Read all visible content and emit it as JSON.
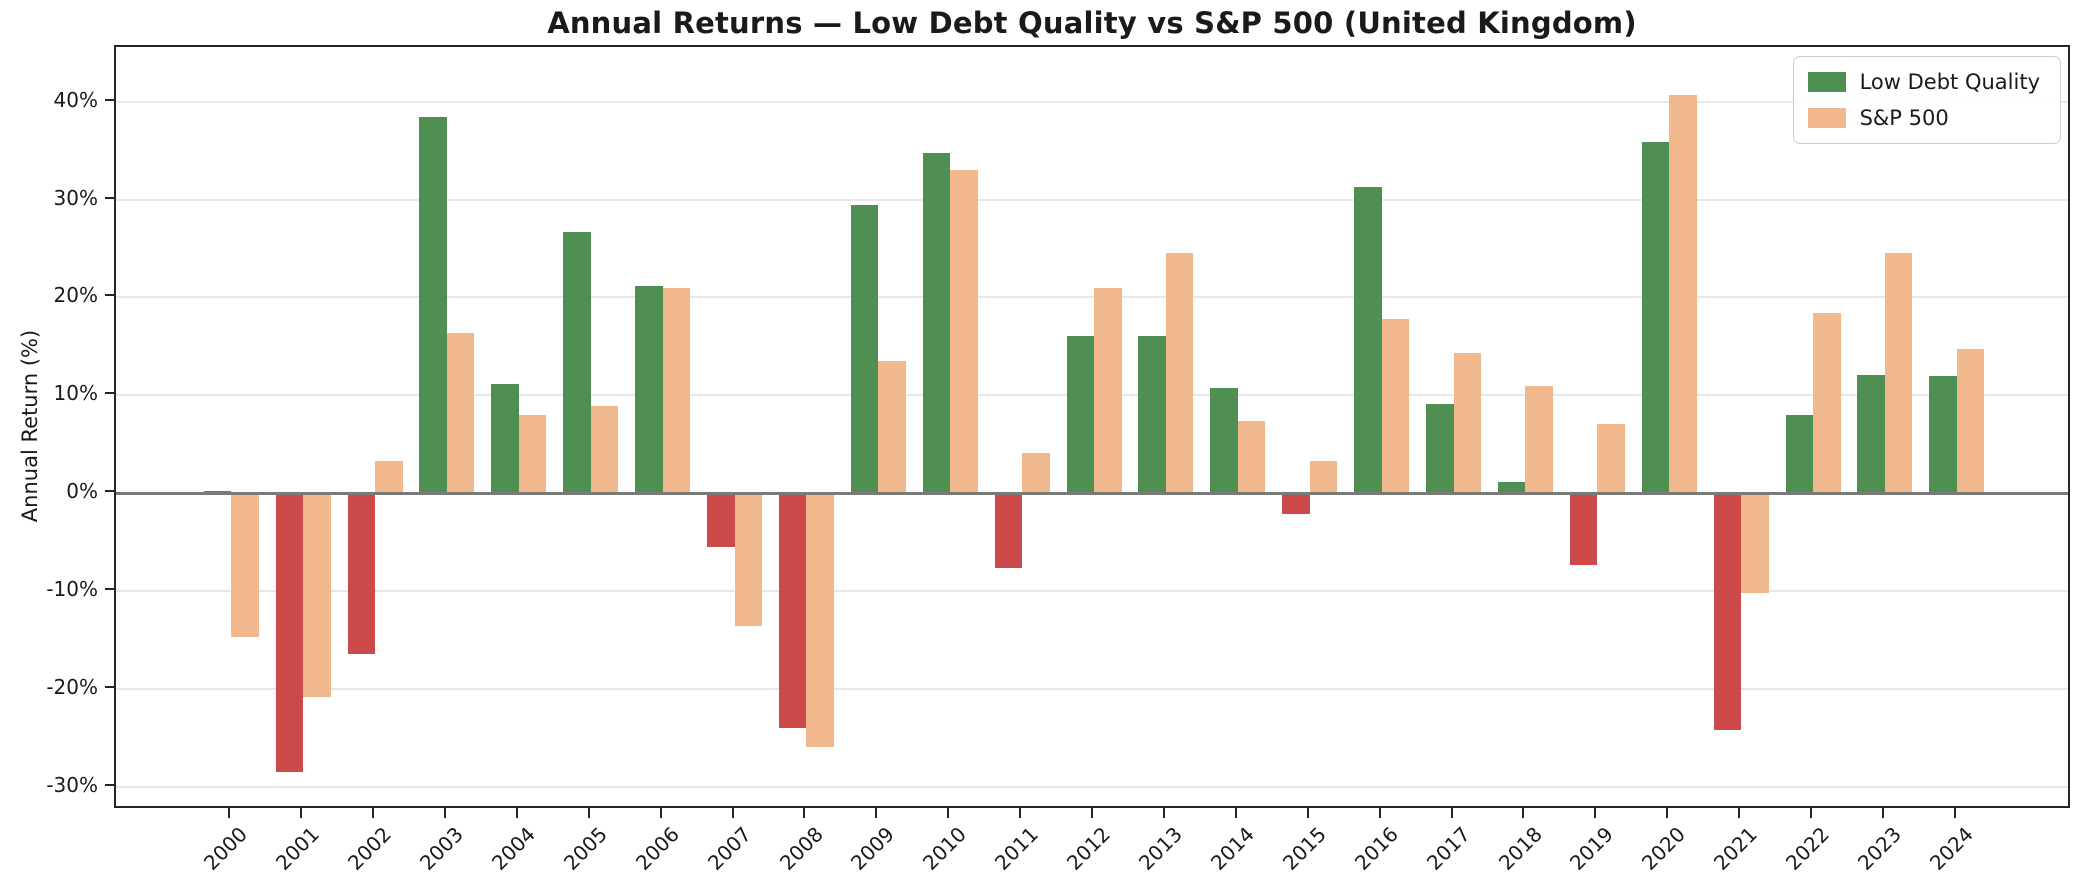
{
  "title": "Annual Returns — Low Debt Quality vs S&P 500 (United Kingdom)",
  "chart_data": {
    "type": "bar",
    "title": "Annual Returns — Low Debt Quality vs S&P 500 (United Kingdom)",
    "xlabel": "",
    "ylabel": "Annual Return (%)",
    "categories": [
      "2000",
      "2001",
      "2002",
      "2003",
      "2004",
      "2005",
      "2006",
      "2007",
      "2008",
      "2009",
      "2010",
      "2011",
      "2012",
      "2013",
      "2014",
      "2015",
      "2016",
      "2017",
      "2018",
      "2019",
      "2020",
      "2021",
      "2022",
      "2023",
      "2024"
    ],
    "series": [
      {
        "name": "Low Debt Quality",
        "values": [
          0.2,
          -28.5,
          -16.5,
          38.4,
          11.2,
          26.7,
          21.2,
          -5.5,
          -24.0,
          29.4,
          34.8,
          -7.7,
          16.1,
          16.1,
          10.7,
          -2.1,
          31.3,
          9.1,
          1.1,
          -7.4,
          35.9,
          -24.2,
          8.0,
          12.1,
          12.0
        ]
      },
      {
        "name": "S&P 500",
        "values": [
          -14.7,
          -20.8,
          3.3,
          16.4,
          8.0,
          8.9,
          21.0,
          -13.6,
          -26.0,
          13.5,
          33.0,
          4.1,
          21.0,
          24.5,
          7.4,
          3.3,
          17.8,
          14.3,
          10.9,
          7.1,
          40.7,
          -10.2,
          18.4,
          24.5,
          14.7
        ]
      }
    ],
    "yticks": [
      -30,
      -20,
      -10,
      0,
      10,
      20,
      30,
      40
    ],
    "ytick_suffix": "%",
    "ylim": [
      -32.4,
      45.6
    ],
    "grid": true,
    "legend_position": "upper right",
    "colors": {
      "low_debt_quality_positive": "#4f8f52",
      "low_debt_quality_negative": "#cc4949",
      "sp500": "#f2b88d",
      "gridline": "#e7e7e7",
      "zero_line": "#7a7a7a",
      "spine": "#262626"
    }
  }
}
